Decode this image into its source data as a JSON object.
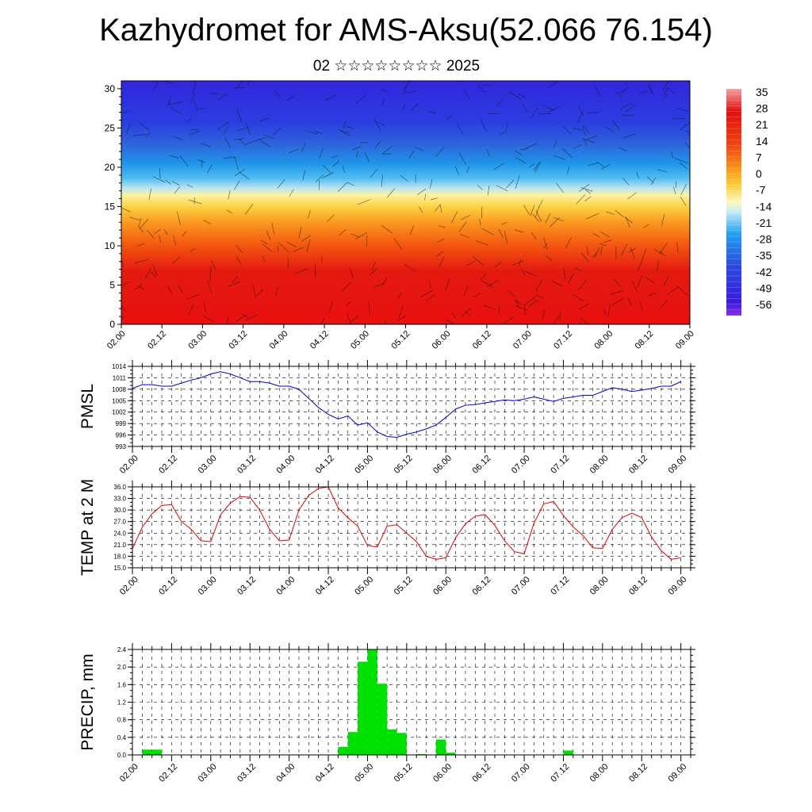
{
  "title": "Kazhydromet for AMS-Aksu(52.066 76.154)",
  "subtitle": "02 ☆☆☆☆☆☆☆☆ 2025",
  "colors": {
    "pmsl_line": "#0000cc",
    "temp_line": "#dd0000",
    "precip_bar": "#00e000"
  },
  "chart_data": [
    {
      "type": "heatmap",
      "title": "",
      "xlabel": "",
      "ylabel": "",
      "x_ticks": [
        "02.00",
        "02.12",
        "03.00",
        "03.12",
        "04.00",
        "04.12",
        "05.00",
        "05.12",
        "06.00",
        "06.12",
        "07.00",
        "07.12",
        "08.00",
        "08.12",
        "09.00"
      ],
      "y_ticks": [
        "0",
        "5",
        "10",
        "15",
        "20",
        "25",
        "30"
      ],
      "ylim": [
        0,
        31
      ],
      "overlay": "wind vectors",
      "colorbar_labels": [
        "35",
        "28",
        "21",
        "14",
        "7",
        "0",
        "-7",
        "-14",
        "-21",
        "-28",
        "-35",
        "-42",
        "-49",
        "-56"
      ],
      "colorbar_range": [
        -60,
        38
      ]
    },
    {
      "type": "line",
      "ylabel": "PMSL",
      "y_ticks": [
        "1014",
        "1011",
        "1008",
        "1005",
        "1002",
        "999",
        "996",
        "993"
      ],
      "ylim": [
        993,
        1014
      ],
      "x_ticks": [
        "02.00",
        "02.12",
        "03.00",
        "03.12",
        "04.00",
        "04.12",
        "05.00",
        "05.12",
        "06.00",
        "06.12",
        "07.00",
        "07.12",
        "08.00",
        "08.12",
        "09.00"
      ],
      "x_step_hours": 3,
      "values": [
        1008.2,
        1009.2,
        1009.2,
        1008.8,
        1008.8,
        1009.6,
        1010.4,
        1011.0,
        1012.0,
        1012.6,
        1012.0,
        1011.0,
        1010.0,
        1010.0,
        1009.6,
        1008.8,
        1008.8,
        1008.0,
        1005.6,
        1003.2,
        1001.4,
        1000.2,
        1001.0,
        998.6,
        999.2,
        996.8,
        995.6,
        995.4,
        996.2,
        996.8,
        997.6,
        998.6,
        1000.6,
        1002.8,
        1003.8,
        1004.0,
        1004.4,
        1004.8,
        1005.2,
        1005.0,
        1005.4,
        1006.0,
        1005.4,
        1004.8,
        1005.6,
        1006.0,
        1006.4,
        1006.4,
        1007.4,
        1008.4,
        1008.0,
        1007.4,
        1007.8,
        1008.2,
        1008.8,
        1008.8,
        1010.0
      ]
    },
    {
      "type": "line",
      "ylabel": "TEMP at 2 M",
      "y_ticks": [
        "36.0",
        "33.0",
        "30.0",
        "27.0",
        "24.0",
        "21.0",
        "18.0",
        "15.0"
      ],
      "ylim": [
        15,
        36
      ],
      "x_ticks": [
        "02.00",
        "02.12",
        "03.00",
        "03.12",
        "04.00",
        "04.12",
        "05.00",
        "05.12",
        "06.00",
        "06.12",
        "07.00",
        "07.12",
        "08.00",
        "08.12",
        "09.00"
      ],
      "x_step_hours": 3,
      "values": [
        20.0,
        25.5,
        29.0,
        31.2,
        31.4,
        27.0,
        25.0,
        22.0,
        21.8,
        28.8,
        31.8,
        33.5,
        33.3,
        30.0,
        25.0,
        22.0,
        22.2,
        30.0,
        33.8,
        35.6,
        36.0,
        30.6,
        28.0,
        25.8,
        20.8,
        20.4,
        25.8,
        26.2,
        24.0,
        21.8,
        18.0,
        17.2,
        17.6,
        22.8,
        26.4,
        28.4,
        28.8,
        26.0,
        22.0,
        19.2,
        18.6,
        26.6,
        31.6,
        32.2,
        28.6,
        25.6,
        23.4,
        20.2,
        20.0,
        25.0,
        28.0,
        29.2,
        28.0,
        23.0,
        19.4,
        17.2,
        17.6
      ]
    },
    {
      "type": "bar",
      "ylabel": "PRECIP, mm",
      "y_ticks": [
        "2.4",
        "2.0",
        "1.6",
        "1.2",
        "0.8",
        "0.4",
        "0.0"
      ],
      "ylim": [
        0,
        2.4
      ],
      "x_ticks": [
        "02.00",
        "02.12",
        "03.00",
        "03.12",
        "04.00",
        "04.12",
        "05.00",
        "05.12",
        "06.00",
        "06.12",
        "07.00",
        "07.12",
        "08.00",
        "08.12",
        "09.00"
      ],
      "x_step_hours": 3,
      "values": [
        0,
        0.12,
        0.12,
        0,
        0,
        0,
        0,
        0,
        0,
        0,
        0,
        0,
        0,
        0,
        0,
        0,
        0,
        0,
        0,
        0,
        0,
        0.18,
        0.52,
        2.12,
        2.4,
        1.62,
        0.58,
        0.5,
        0,
        0.02,
        0,
        0.35,
        0.05,
        0,
        0,
        0,
        0,
        0,
        0,
        0,
        0,
        0,
        0,
        0.01,
        0.1,
        0,
        0,
        0,
        0,
        0,
        0,
        0,
        0,
        0,
        0,
        0
      ]
    }
  ]
}
